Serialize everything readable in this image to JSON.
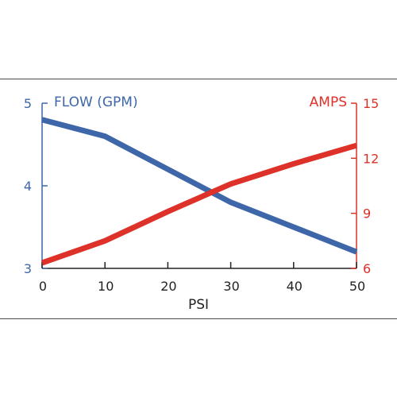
{
  "chart_data": {
    "type": "line",
    "xlabel": "PSI",
    "x_ticks": [
      "0",
      "10",
      "20",
      "30",
      "40",
      "50"
    ],
    "xlim": [
      0,
      50
    ],
    "y_left": {
      "label": "FLOW (GPM)",
      "ticks": [
        "3",
        "4",
        "5"
      ],
      "lim": [
        3,
        5
      ],
      "color": "#3d67a8"
    },
    "y_right": {
      "label": "AMPS",
      "ticks": [
        "6",
        "9",
        "12",
        "15"
      ],
      "lim": [
        6,
        15
      ],
      "color": "#dd3129"
    },
    "series": [
      {
        "name": "FLOW (GPM)",
        "axis": "left",
        "color": "#3d67a8",
        "points": [
          [
            0,
            4.8
          ],
          [
            10,
            4.6
          ],
          [
            20,
            4.2
          ],
          [
            30,
            3.8
          ],
          [
            40,
            3.5
          ],
          [
            50,
            3.2
          ]
        ]
      },
      {
        "name": "AMPS",
        "axis": "right",
        "color": "#dd3129",
        "points": [
          [
            0,
            6.3
          ],
          [
            10,
            7.5
          ],
          [
            20,
            9.1
          ],
          [
            30,
            10.6
          ],
          [
            40,
            11.7
          ],
          [
            50,
            12.7
          ]
        ]
      }
    ],
    "grid": false,
    "legend": "none"
  }
}
